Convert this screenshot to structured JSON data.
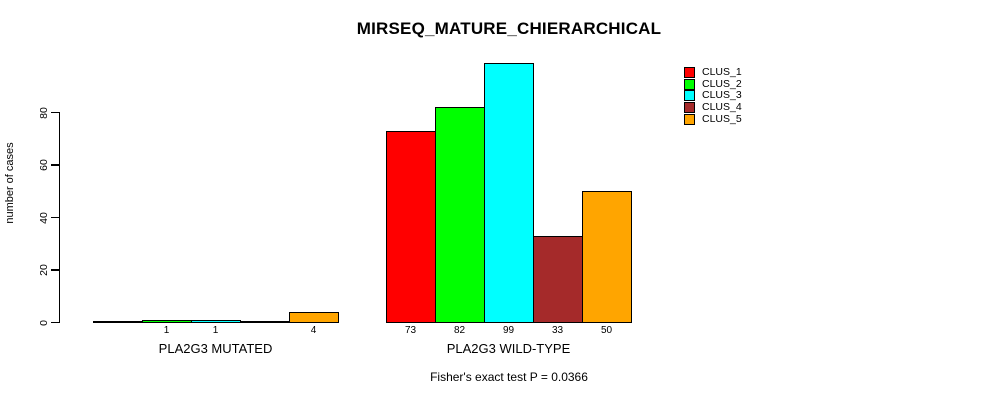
{
  "title": "MIRSEQ_MATURE_CHIERARCHICAL",
  "subtitle": "Fisher's exact test P = 0.0366",
  "chart_data": {
    "type": "bar",
    "title": "MIRSEQ_MATURE_CHIERARCHICAL",
    "subtitle": "Fisher's exact test P = 0.0366",
    "ylabel": "number of cases",
    "xlabel": "",
    "categories": [
      "PLA2G3 MUTATED",
      "PLA2G3 WILD-TYPE"
    ],
    "series": [
      {
        "name": "CLUS_1",
        "color": "#FF0000",
        "values": [
          0,
          73
        ]
      },
      {
        "name": "CLUS_2",
        "color": "#00FF00",
        "values": [
          1,
          82
        ]
      },
      {
        "name": "CLUS_3",
        "color": "#00FFFF",
        "values": [
          1,
          99
        ]
      },
      {
        "name": "CLUS_4",
        "color": "#A52A2A",
        "values": [
          0,
          33
        ]
      },
      {
        "name": "CLUS_5",
        "color": "#FFA500",
        "values": [
          4,
          50
        ]
      }
    ],
    "bar_value_labels": {
      "PLA2G3 MUTATED": [
        "",
        "1",
        "1",
        "",
        "4"
      ],
      "PLA2G3 WILD-TYPE": [
        "73",
        "82",
        "99",
        "33",
        "50"
      ]
    },
    "yticks": [
      0,
      20,
      40,
      60,
      80
    ],
    "ylim": [
      0,
      105
    ],
    "grid": false,
    "legend_position": "right",
    "legend_entries": [
      "CLUS_1",
      "CLUS_2",
      "CLUS_3",
      "CLUS_4",
      "CLUS_5"
    ],
    "bar_border_color": "#000000"
  }
}
